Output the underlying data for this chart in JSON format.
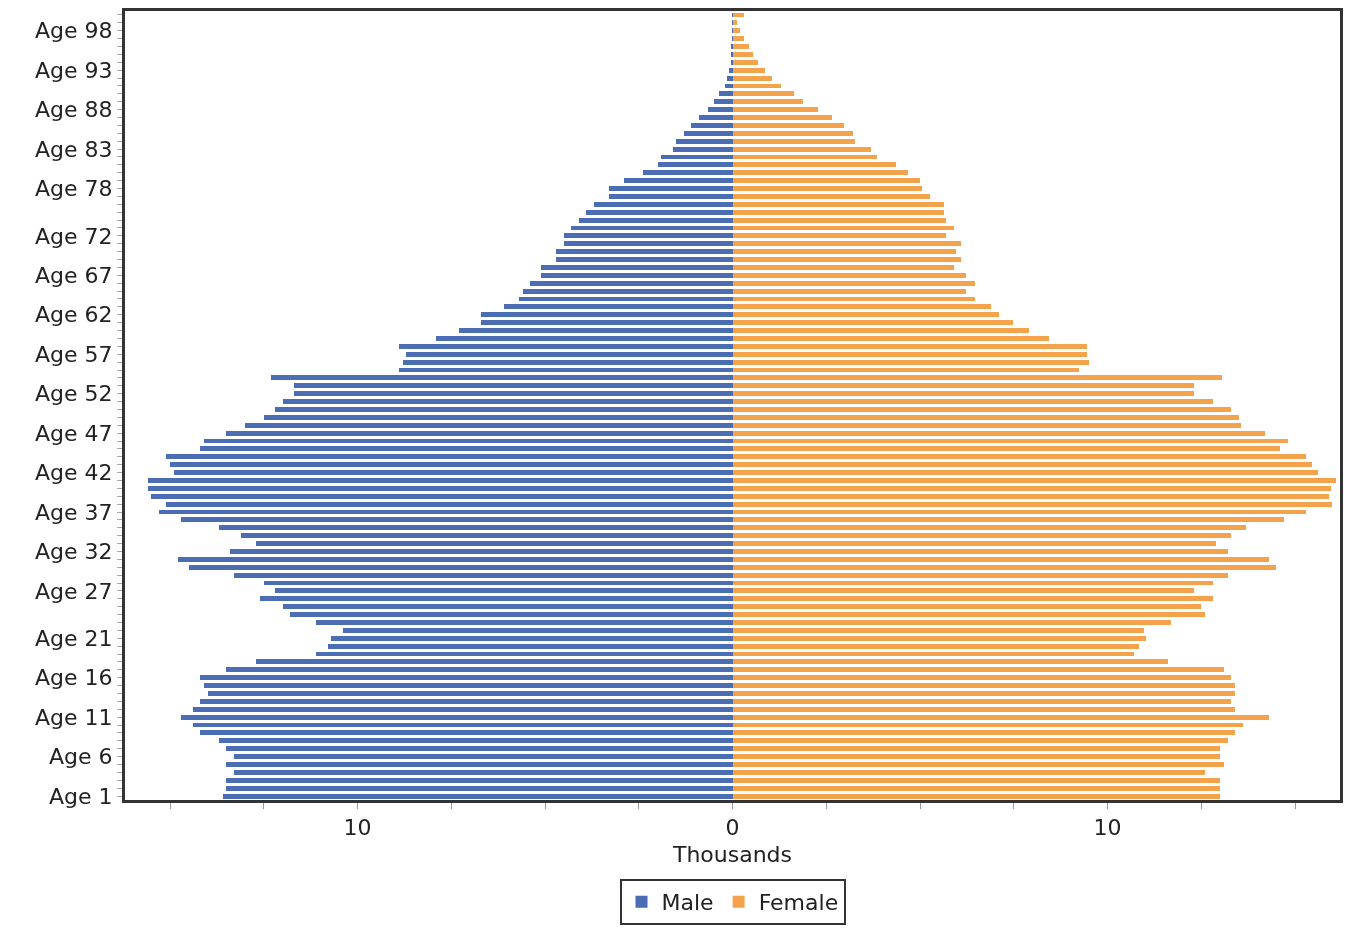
{
  "chart_data": {
    "type": "bar",
    "orientation": "horizontal",
    "xlabel": "Thousands",
    "categories": [
      null,
      null,
      "Age 98",
      null,
      null,
      null,
      null,
      "Age 93",
      null,
      null,
      null,
      null,
      "Age 88",
      null,
      null,
      null,
      null,
      "Age 83",
      null,
      null,
      null,
      null,
      "Age 78",
      null,
      null,
      null,
      null,
      null,
      "Age 72",
      null,
      null,
      null,
      null,
      "Age 67",
      null,
      null,
      null,
      null,
      "Age 62",
      null,
      null,
      null,
      null,
      "Age 57",
      null,
      null,
      null,
      null,
      "Age 52",
      null,
      null,
      null,
      null,
      "Age 47",
      null,
      null,
      null,
      null,
      "Age 42",
      null,
      null,
      null,
      null,
      "Age 37",
      null,
      null,
      null,
      null,
      "Age 32",
      null,
      null,
      null,
      null,
      "Age 27",
      null,
      null,
      null,
      null,
      null,
      "Age 21",
      null,
      null,
      null,
      null,
      "Age 16",
      null,
      null,
      null,
      null,
      "Age 11",
      null,
      null,
      null,
      null,
      "Age 6",
      null,
      null,
      null,
      null,
      "Age 1"
    ],
    "series": [
      {
        "name": "Male",
        "color": "#4a6db3",
        "values": [
          -0.01,
          -0.01,
          -0.02,
          -0.02,
          -0.03,
          -0.05,
          -0.05,
          -0.1,
          -0.15,
          -0.2,
          -0.35,
          -0.5,
          -0.65,
          -0.9,
          -1.1,
          -1.3,
          -1.5,
          -1.6,
          -1.9,
          -2.0,
          -2.4,
          -2.9,
          -3.3,
          -3.3,
          -3.7,
          -3.9,
          -4.1,
          -4.3,
          -4.5,
          -4.5,
          -4.7,
          -4.7,
          -5.1,
          -5.1,
          -5.4,
          -5.6,
          -5.7,
          -6.1,
          -6.7,
          -6.7,
          -7.3,
          -7.9,
          -8.9,
          -8.7,
          -8.8,
          -8.9,
          -12.3,
          -11.7,
          -11.7,
          -12.0,
          -12.2,
          -12.5,
          -13.0,
          -13.5,
          -14.1,
          -14.2,
          -15.1,
          -15.0,
          -14.9,
          -15.6,
          -15.6,
          -15.5,
          -15.1,
          -15.3,
          -14.7,
          -13.7,
          -13.1,
          -12.7,
          -13.4,
          -14.8,
          -14.5,
          -13.3,
          -12.5,
          -12.2,
          -12.6,
          -12.0,
          -11.8,
          -11.1,
          -10.4,
          -10.7,
          -10.8,
          -11.1,
          -12.7,
          -13.5,
          -14.2,
          -14.1,
          -14.0,
          -14.2,
          -14.4,
          -14.7,
          -14.4,
          -14.2,
          -13.7,
          -13.5,
          -13.3,
          -13.5,
          -13.3,
          -13.5,
          -13.5,
          -13.6
        ]
      },
      {
        "name": "Female",
        "color": "#f4a24b",
        "values": [
          0.3,
          0.13,
          0.2,
          0.3,
          0.43,
          0.55,
          0.68,
          0.87,
          1.06,
          1.3,
          1.63,
          1.89,
          2.27,
          2.65,
          2.96,
          3.22,
          3.27,
          3.68,
          3.86,
          4.36,
          4.68,
          5.0,
          5.05,
          5.26,
          5.63,
          5.63,
          5.69,
          5.9,
          5.69,
          6.08,
          5.95,
          6.08,
          5.9,
          6.22,
          6.46,
          6.22,
          6.46,
          6.9,
          7.1,
          7.49,
          7.91,
          8.44,
          9.44,
          9.44,
          9.5,
          9.23,
          13.06,
          12.3,
          12.3,
          12.8,
          13.3,
          13.5,
          13.57,
          14.2,
          14.8,
          14.6,
          15.3,
          15.45,
          15.6,
          16.1,
          15.97,
          15.9,
          15.98,
          15.3,
          14.7,
          13.7,
          13.3,
          12.9,
          13.2,
          14.3,
          14.5,
          13.2,
          12.8,
          12.3,
          12.8,
          12.5,
          12.6,
          11.7,
          10.96,
          11.03,
          10.84,
          10.7,
          11.6,
          13.1,
          13.3,
          13.4,
          13.4,
          13.3,
          13.4,
          14.3,
          13.6,
          13.4,
          13.2,
          13.0,
          13.0,
          13.1,
          12.6,
          13.0,
          13.0,
          13.0
        ]
      }
    ],
    "xlim": [
      -16.2,
      16.2
    ],
    "xticks": [
      {
        "value": -15,
        "label": null
      },
      {
        "value": -12.5,
        "label": null
      },
      {
        "value": -10,
        "label": "10"
      },
      {
        "value": -7.5,
        "label": null
      },
      {
        "value": -5,
        "label": null
      },
      {
        "value": -2.5,
        "label": null
      },
      0,
      {
        "value": 2.5,
        "label": null
      },
      {
        "value": 5,
        "label": null
      },
      {
        "value": 7.5,
        "label": null
      },
      10,
      {
        "value": 12.5,
        "label": null
      },
      {
        "value": 15,
        "label": null
      }
    ],
    "grid": false,
    "legend": "bottom",
    "stacked": true
  }
}
